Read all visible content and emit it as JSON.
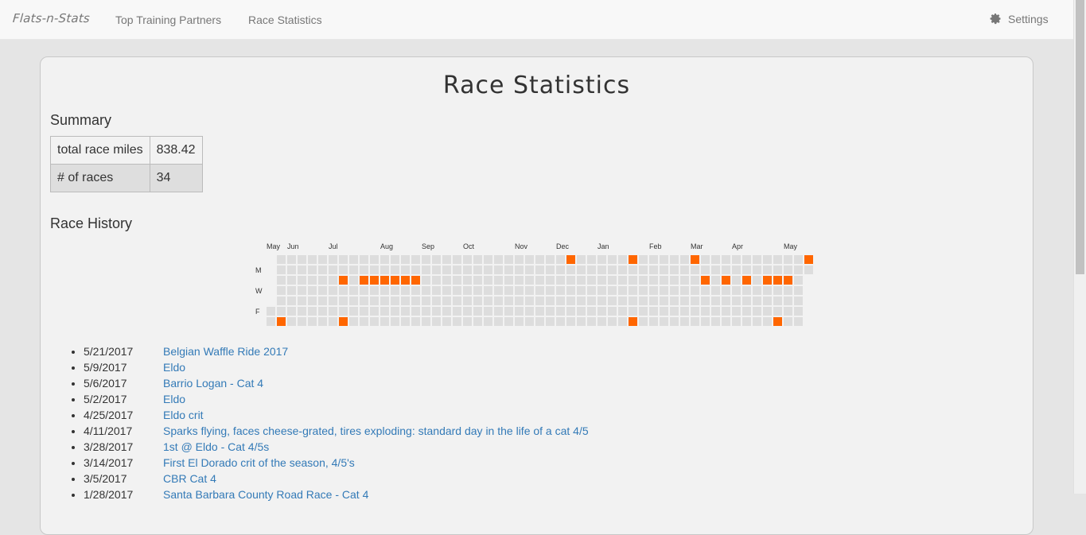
{
  "navbar": {
    "brand": "Flats-n-Stats",
    "links": [
      {
        "label": "Top Training Partners"
      },
      {
        "label": "Race Statistics"
      }
    ],
    "settings_label": "Settings",
    "settings_icon": "gear-icon"
  },
  "page": {
    "title": "Race Statistics"
  },
  "summary": {
    "heading": "Summary",
    "rows": [
      {
        "label": "total race miles",
        "value": "838.42"
      },
      {
        "label": "# of races",
        "value": "34"
      }
    ]
  },
  "history": {
    "heading": "Race History",
    "heatmap": {
      "months": [
        {
          "label": "May",
          "week": 0
        },
        {
          "label": "Jun",
          "week": 2
        },
        {
          "label": "Jul",
          "week": 6
        },
        {
          "label": "Aug",
          "week": 11
        },
        {
          "label": "Sep",
          "week": 15
        },
        {
          "label": "Oct",
          "week": 19
        },
        {
          "label": "Nov",
          "week": 24
        },
        {
          "label": "Dec",
          "week": 28
        },
        {
          "label": "Jan",
          "week": 32
        },
        {
          "label": "Feb",
          "week": 37
        },
        {
          "label": "Mar",
          "week": 41
        },
        {
          "label": "Apr",
          "week": 45
        },
        {
          "label": "May",
          "week": 50
        }
      ],
      "day_labels": [
        {
          "label": "M",
          "day": 1
        },
        {
          "label": "W",
          "day": 3
        },
        {
          "label": "F",
          "day": 5
        }
      ],
      "weeks": 53,
      "first_week_start_day": 5,
      "last_week_days": 2,
      "race_days": [
        {
          "week": 1,
          "day": 6
        },
        {
          "week": 7,
          "day": 2
        },
        {
          "week": 7,
          "day": 6
        },
        {
          "week": 9,
          "day": 2
        },
        {
          "week": 10,
          "day": 2
        },
        {
          "week": 11,
          "day": 2
        },
        {
          "week": 12,
          "day": 2
        },
        {
          "week": 13,
          "day": 2
        },
        {
          "week": 14,
          "day": 2
        },
        {
          "week": 29,
          "day": 0
        },
        {
          "week": 35,
          "day": 0
        },
        {
          "week": 35,
          "day": 6
        },
        {
          "week": 41,
          "day": 0
        },
        {
          "week": 42,
          "day": 2
        },
        {
          "week": 44,
          "day": 2
        },
        {
          "week": 46,
          "day": 2
        },
        {
          "week": 48,
          "day": 2
        },
        {
          "week": 49,
          "day": 2
        },
        {
          "week": 49,
          "day": 6
        },
        {
          "week": 50,
          "day": 2
        },
        {
          "week": 52,
          "day": 0
        }
      ],
      "empty_color": "#dddddd",
      "race_color": "#ff6600"
    },
    "races": [
      {
        "date": "5/21/2017",
        "name": "Belgian Waffle Ride 2017"
      },
      {
        "date": "5/9/2017",
        "name": "Eldo"
      },
      {
        "date": "5/6/2017",
        "name": "Barrio Logan - Cat 4"
      },
      {
        "date": "5/2/2017",
        "name": "Eldo"
      },
      {
        "date": "4/25/2017",
        "name": "Eldo crit"
      },
      {
        "date": "4/11/2017",
        "name": "Sparks flying, faces cheese-grated, tires exploding: standard day in the life of a cat 4/5"
      },
      {
        "date": "3/28/2017",
        "name": "1st @ Eldo - Cat 4/5s"
      },
      {
        "date": "3/14/2017",
        "name": "First El Dorado crit of the season, 4/5's"
      },
      {
        "date": "3/5/2017",
        "name": "CBR Cat 4"
      },
      {
        "date": "1/28/2017",
        "name": "Santa Barbara County Road Race - Cat 4"
      }
    ]
  }
}
